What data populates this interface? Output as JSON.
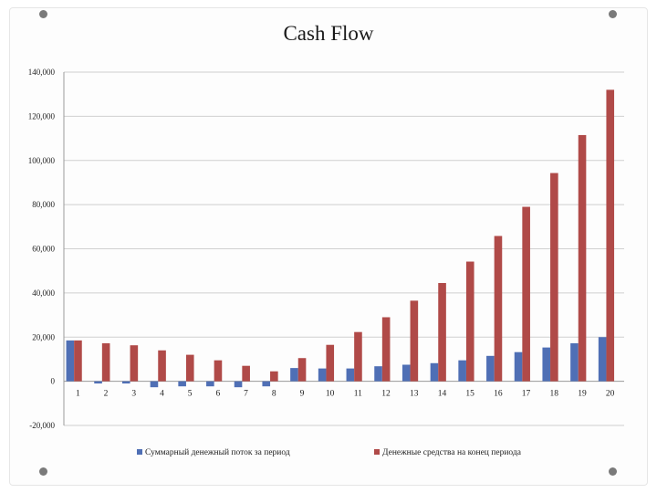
{
  "colors": {
    "series1": "#4f6fb5",
    "series2": "#b04a48",
    "grid": "#d0d0d0",
    "axis": "#9a9a9a"
  },
  "chart_data": {
    "type": "bar",
    "title": "Cash Flow",
    "xlabel": "",
    "ylabel": "",
    "ylim": [
      -20000,
      140000
    ],
    "yticks": [
      -20000,
      0,
      20000,
      40000,
      60000,
      80000,
      100000,
      120000,
      140000
    ],
    "ytick_labels": [
      "-20,000",
      "0",
      "20,000",
      "40,000",
      "60,000",
      "80,000",
      "100,000",
      "120,000",
      "140,000"
    ],
    "grid": true,
    "legend_position": "bottom",
    "categories": [
      "1",
      "2",
      "3",
      "4",
      "5",
      "6",
      "7",
      "8",
      "9",
      "10",
      "11",
      "12",
      "13",
      "14",
      "15",
      "16",
      "17",
      "18",
      "19",
      "20"
    ],
    "series": [
      {
        "name": "Суммарный денежный поток за период",
        "values": [
          18500,
          -1000,
          -1000,
          -2700,
          -2300,
          -2300,
          -2700,
          -2300,
          6000,
          5800,
          5800,
          6800,
          7500,
          8200,
          9500,
          11500,
          13200,
          15300,
          17200,
          20000
        ]
      },
      {
        "name": "Денежные средства на конец периода",
        "values": [
          18500,
          17200,
          16300,
          14000,
          12000,
          9500,
          7000,
          4500,
          10500,
          16500,
          22300,
          29000,
          36500,
          44500,
          54200,
          65800,
          79000,
          94300,
          111500,
          132000
        ]
      }
    ]
  }
}
